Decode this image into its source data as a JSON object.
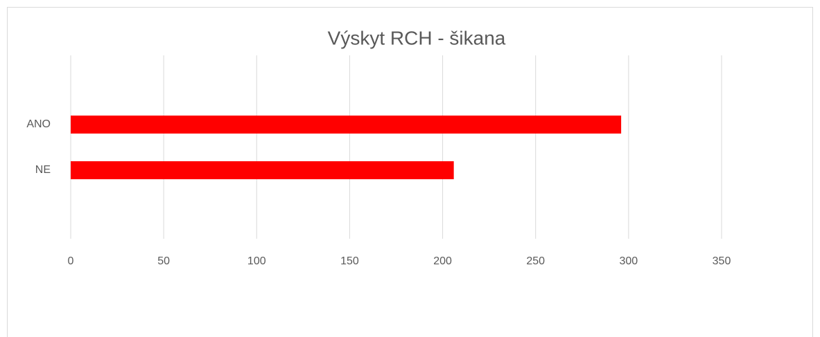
{
  "chart_data": {
    "type": "hbar",
    "title": "Výskyt RCH - šikana",
    "categories": [
      "ANO",
      "NE"
    ],
    "values": [
      296,
      206
    ],
    "color": "#ff0000",
    "xlim": [
      0,
      350
    ],
    "xticks": [
      0,
      50,
      100,
      150,
      200,
      250,
      300,
      350
    ],
    "grid": true
  }
}
